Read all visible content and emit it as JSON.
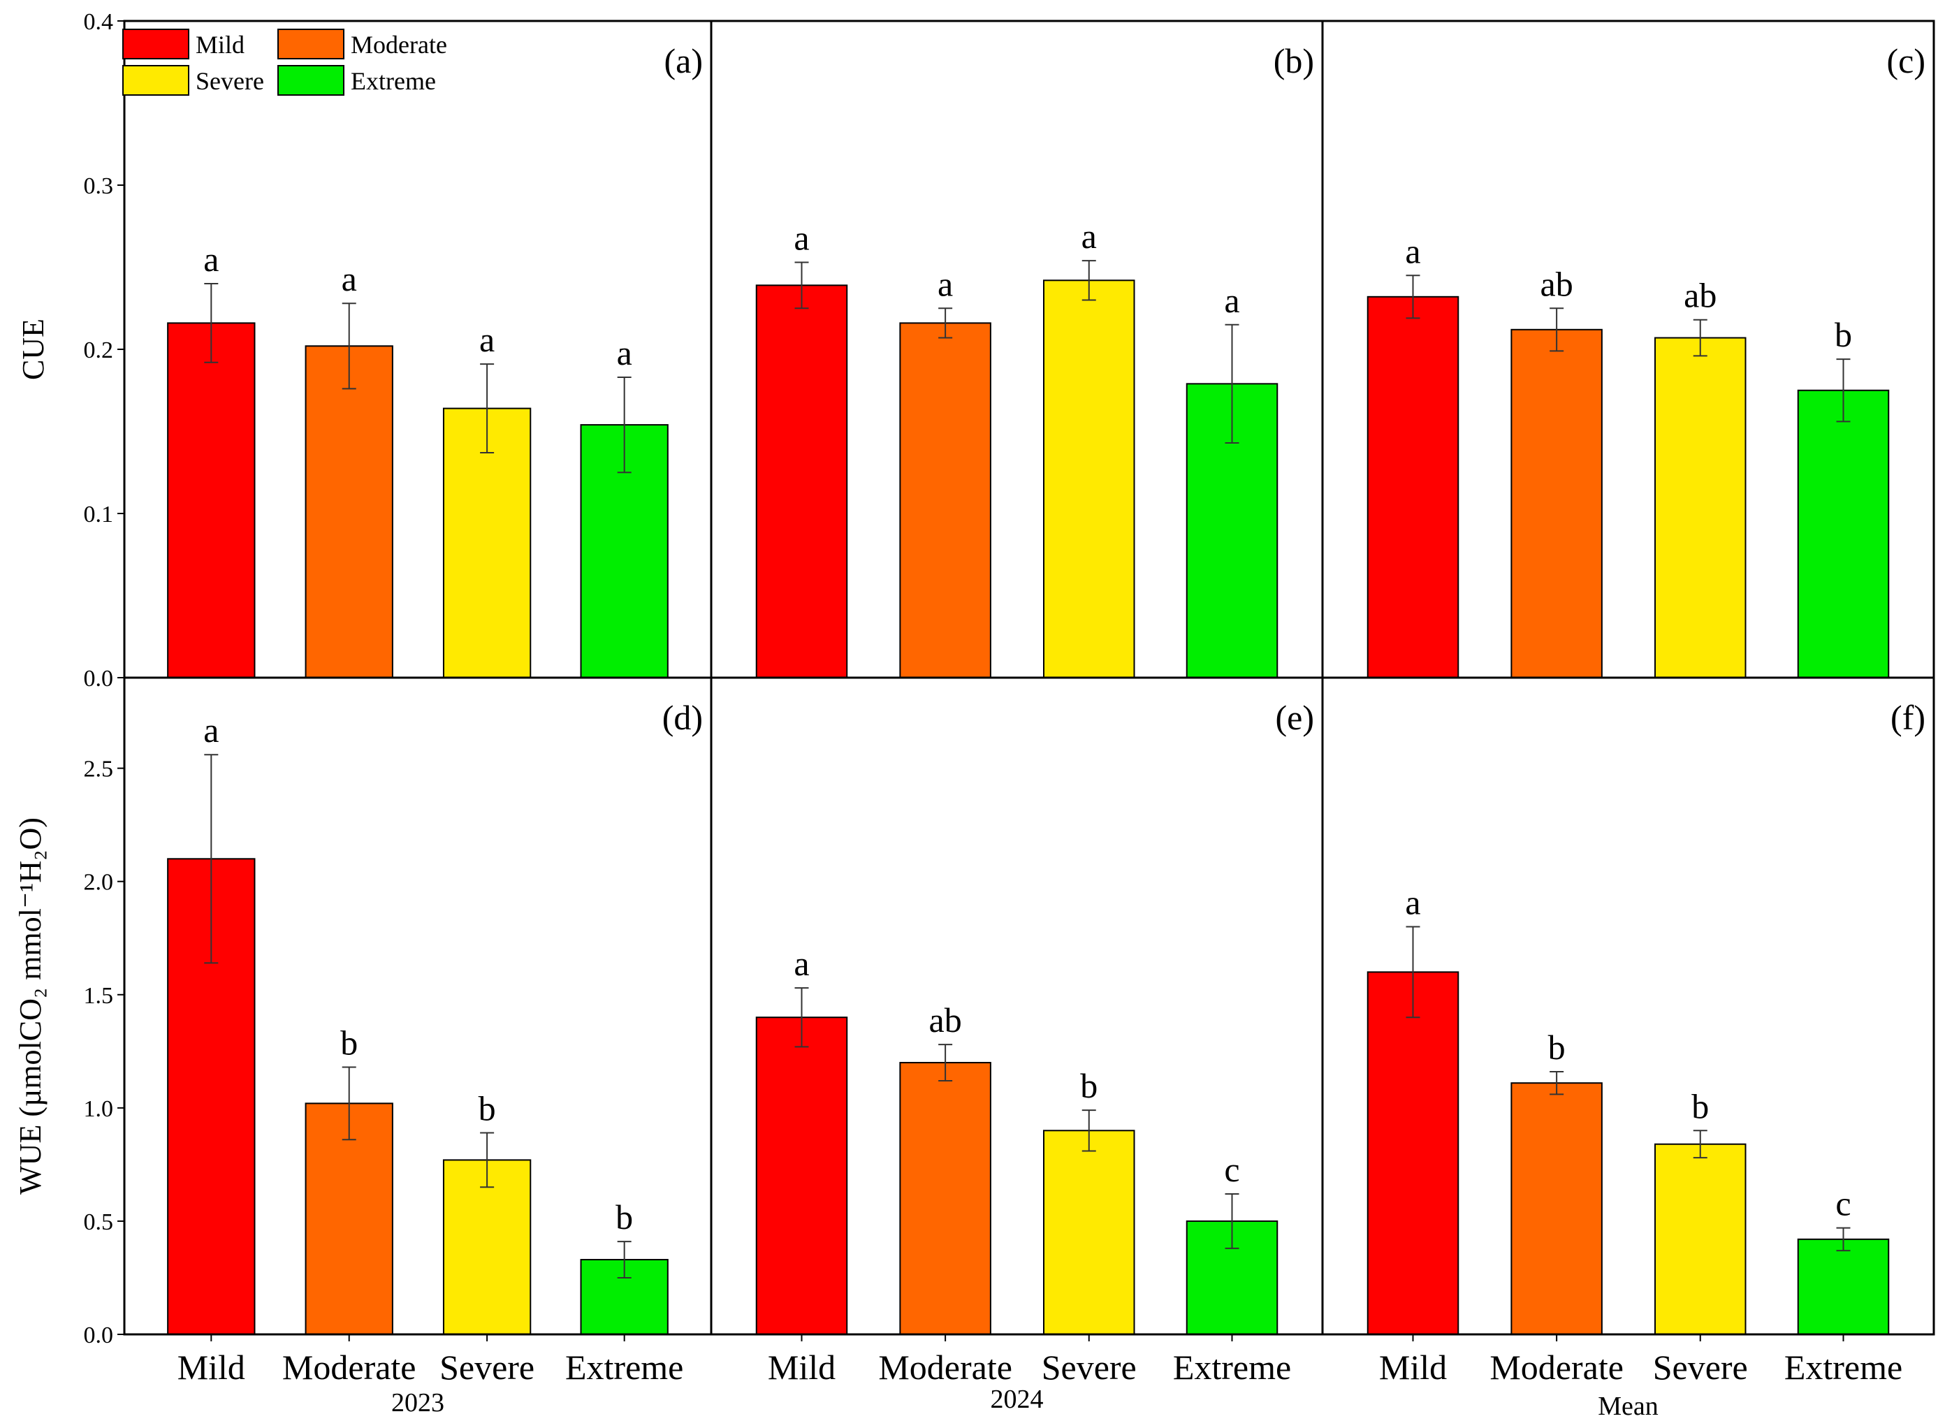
{
  "chart_data": {
    "type": "bar",
    "layout": "2x3 grid",
    "legend": {
      "placement": "top-left",
      "entries": [
        {
          "name": "Mild",
          "color": "#ff0000"
        },
        {
          "name": "Moderate",
          "color": "#ff6600"
        },
        {
          "name": "Severe",
          "color": "#ffea00"
        },
        {
          "name": "Extreme",
          "color": "#00ee00"
        }
      ]
    },
    "categories": [
      "Mild",
      "Moderate",
      "Severe",
      "Extreme"
    ],
    "colors": [
      "#ff0000",
      "#ff6600",
      "#ffea00",
      "#00ee00"
    ],
    "column_labels": [
      "2023",
      "2024",
      "Mean"
    ],
    "rows": [
      {
        "ylabel": "CUE",
        "ylim": [
          0,
          0.4
        ],
        "yticks": [
          "0.0",
          "0.1",
          "0.2",
          "0.3",
          "0.4"
        ],
        "ytick_values": [
          0,
          0.1,
          0.2,
          0.3,
          0.4
        ],
        "panels": [
          {
            "label": "(a)",
            "values": [
              0.216,
              0.202,
              0.164,
              0.154
            ],
            "errors": [
              0.024,
              0.026,
              0.027,
              0.029
            ],
            "sig": [
              "a",
              "a",
              "a",
              "a"
            ]
          },
          {
            "label": "(b)",
            "values": [
              0.239,
              0.216,
              0.242,
              0.179
            ],
            "errors": [
              0.014,
              0.009,
              0.012,
              0.036
            ],
            "sig": [
              "a",
              "a",
              "a",
              "a"
            ]
          },
          {
            "label": "(c)",
            "values": [
              0.232,
              0.212,
              0.207,
              0.175
            ],
            "errors": [
              0.013,
              0.013,
              0.011,
              0.019
            ],
            "sig": [
              "a",
              "ab",
              "ab",
              "b"
            ]
          }
        ]
      },
      {
        "ylabel": "WUE (µmolCO₂ mmol⁻¹H₂O)",
        "ylim": [
          0,
          2.9
        ],
        "yticks": [
          "0.0",
          "0.5",
          "1.0",
          "1.5",
          "2.0",
          "2.5"
        ],
        "ytick_values": [
          0,
          0.5,
          1.0,
          1.5,
          2.0,
          2.5
        ],
        "panels": [
          {
            "label": "(d)",
            "values": [
              2.1,
              1.02,
              0.77,
              0.33
            ],
            "errors": [
              0.46,
              0.16,
              0.12,
              0.08
            ],
            "sig": [
              "a",
              "b",
              "b",
              "b"
            ]
          },
          {
            "label": "(e)",
            "values": [
              1.4,
              1.2,
              0.9,
              0.5
            ],
            "errors": [
              0.13,
              0.08,
              0.09,
              0.12
            ],
            "sig": [
              "a",
              "ab",
              "b",
              "c"
            ]
          },
          {
            "label": "(f)",
            "values": [
              1.6,
              1.11,
              0.84,
              0.42
            ],
            "errors": [
              0.2,
              0.05,
              0.06,
              0.05
            ],
            "sig": [
              "a",
              "b",
              "b",
              "c"
            ]
          }
        ]
      }
    ]
  }
}
